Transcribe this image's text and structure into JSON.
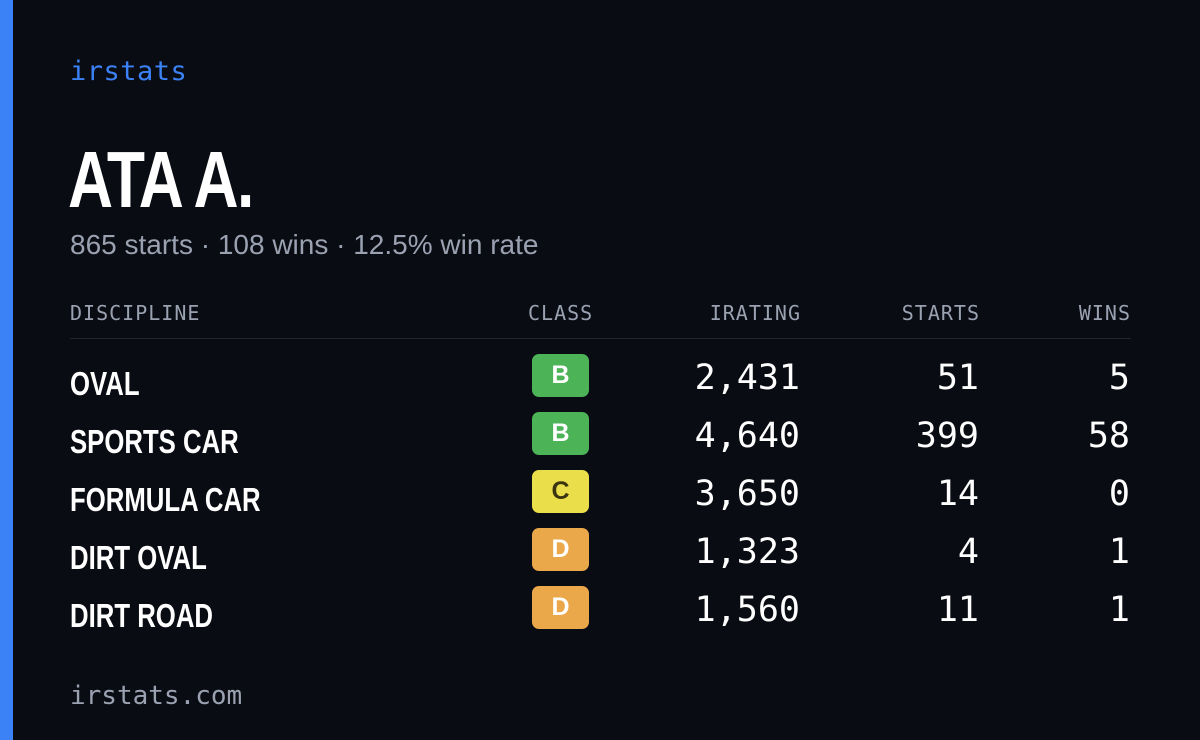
{
  "brand": "irstats",
  "driver": {
    "name": "ATA A.",
    "summary": "865 starts · 108 wins · 12.5% win rate"
  },
  "table": {
    "headers": {
      "discipline": "DISCIPLINE",
      "class": "CLASS",
      "irating": "IRATING",
      "starts": "STARTS",
      "wins": "WINS"
    },
    "rows": [
      {
        "discipline": "OVAL",
        "class": "B",
        "class_color": "#4db357",
        "class_text_color": "#ffffff",
        "irating": "2,431",
        "starts": "51",
        "wins": "5"
      },
      {
        "discipline": "SPORTS CAR",
        "class": "B",
        "class_color": "#4db357",
        "class_text_color": "#ffffff",
        "irating": "4,640",
        "starts": "399",
        "wins": "58"
      },
      {
        "discipline": "FORMULA CAR",
        "class": "C",
        "class_color": "#eadf4a",
        "class_text_color": "#3a3410",
        "irating": "3,650",
        "starts": "14",
        "wins": "0"
      },
      {
        "discipline": "DIRT OVAL",
        "class": "D",
        "class_color": "#eaa84b",
        "class_text_color": "#ffffff",
        "irating": "1,323",
        "starts": "4",
        "wins": "1"
      },
      {
        "discipline": "DIRT ROAD",
        "class": "D",
        "class_color": "#eaa84b",
        "class_text_color": "#ffffff",
        "irating": "1,560",
        "starts": "11",
        "wins": "1"
      }
    ]
  },
  "footer": "irstats.com",
  "colors": {
    "accent": "#3b82f6",
    "background": "#0a0c13",
    "muted": "#9aa2b1"
  }
}
